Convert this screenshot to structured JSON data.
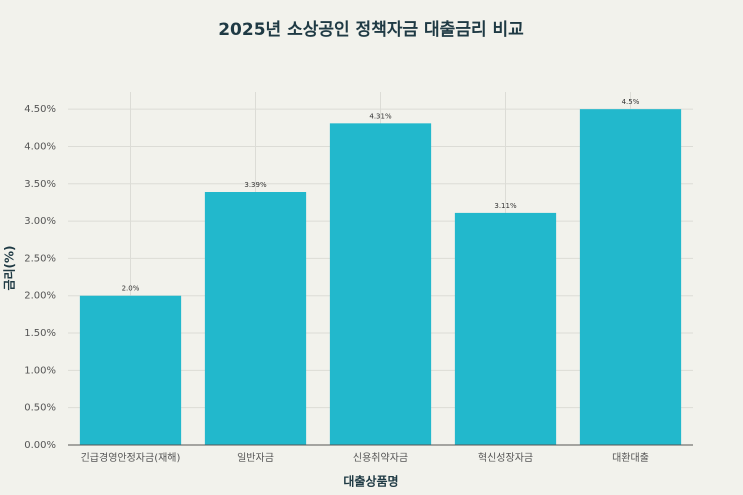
{
  "chart_data": {
    "type": "bar",
    "title": "2025년 소상공인 정책자금 대출금리 비교",
    "x_label": "대출상품명",
    "y_label": "금리(%)",
    "categories": [
      "긴급경영안정자금(재해)",
      "일반자금",
      "신용취약자금",
      "혁신성장자금",
      "대환대출"
    ],
    "values": [
      2.0,
      3.39,
      4.31,
      3.11,
      4.5
    ],
    "value_labels": [
      "2.0%",
      "3.39%",
      "4.31%",
      "3.11%",
      "4.5%"
    ],
    "color": "#22b8cc",
    "ylim": [
      0,
      4.73
    ],
    "yticks": [
      {
        "value": 0,
        "label": "0.00%"
      },
      {
        "value": 0.5,
        "label": "0.50%"
      },
      {
        "value": 1,
        "label": "1.00%"
      },
      {
        "value": 1.5,
        "label": "1.50%"
      },
      {
        "value": 2,
        "label": "2.00%"
      },
      {
        "value": 2.5,
        "label": "2.50%"
      },
      {
        "value": 3,
        "label": "3.00%"
      },
      {
        "value": 3.5,
        "label": "3.50%"
      },
      {
        "value": 4,
        "label": "4.00%"
      },
      {
        "value": 4.5,
        "label": "4.50%"
      }
    ],
    "grid": true
  }
}
